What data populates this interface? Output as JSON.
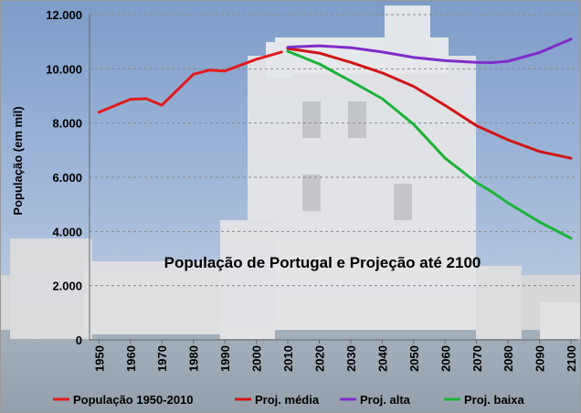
{
  "chart_data": {
    "type": "line",
    "title": "População de Portugal e Projeção até 2100",
    "ylabel": "População (em mil)",
    "xlabel": "",
    "xlim": [
      1947,
      2102
    ],
    "ylim": [
      0,
      12000
    ],
    "yticks": [
      "0",
      "2.000",
      "4.000",
      "6.000",
      "8.000",
      "10.000",
      "12.000"
    ],
    "ytick_values": [
      0,
      2000,
      4000,
      6000,
      8000,
      10000,
      12000
    ],
    "xticks": [
      "1950",
      "1960",
      "1970",
      "1980",
      "1990",
      "2000",
      "2010",
      "2020",
      "2030",
      "2040",
      "2050",
      "2060",
      "2070",
      "2080",
      "2090",
      "2100"
    ],
    "xtick_values": [
      1950,
      1960,
      1970,
      1980,
      1990,
      2000,
      2010,
      2020,
      2030,
      2040,
      2050,
      2060,
      2070,
      2080,
      2090,
      2100
    ],
    "grid": true,
    "legend_position": "bottom",
    "series": [
      {
        "name": "População 1950-2010",
        "color": "#e31a1c",
        "x": [
          1950,
          1960,
          1965,
          1970,
          1980,
          1985,
          1990,
          2000,
          2008
        ],
        "y": [
          8400,
          8880,
          8900,
          8660,
          9800,
          9950,
          9920,
          10350,
          10620
        ]
      },
      {
        "name": "Proj. média",
        "color": "#d01515",
        "x": [
          2010,
          2020,
          2030,
          2040,
          2050,
          2060,
          2070,
          2080,
          2090,
          2100
        ],
        "y": [
          10750,
          10580,
          10240,
          9850,
          9350,
          8650,
          7900,
          7380,
          6950,
          6700
        ]
      },
      {
        "name": "Proj. alta",
        "color": "#7f2ccb",
        "x": [
          2010,
          2020,
          2030,
          2040,
          2050,
          2060,
          2070,
          2075,
          2080,
          2090,
          2100
        ],
        "y": [
          10800,
          10850,
          10780,
          10620,
          10420,
          10300,
          10240,
          10230,
          10280,
          10600,
          11100
        ]
      },
      {
        "name": "Proj. baixa",
        "color": "#1bb339",
        "x": [
          2010,
          2020,
          2030,
          2040,
          2050,
          2060,
          2070,
          2075,
          2080,
          2090,
          2100
        ],
        "y": [
          10650,
          10180,
          9550,
          8900,
          7950,
          6700,
          5800,
          5450,
          5050,
          4350,
          3750
        ]
      }
    ]
  }
}
